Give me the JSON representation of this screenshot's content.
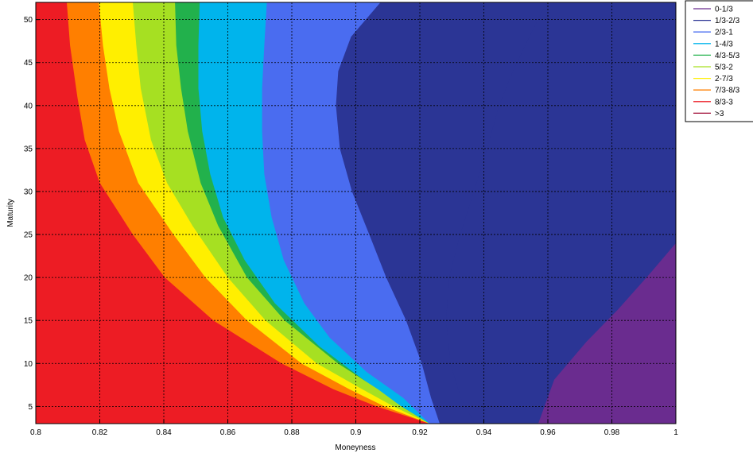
{
  "chart_data": {
    "type": "contour",
    "xlabel": "Moneyness",
    "ylabel": "Maturity",
    "xlim": [
      0.8,
      1.0
    ],
    "ylim": [
      3,
      52
    ],
    "grid": true,
    "legend_position": "outside-top-right",
    "x_ticks": [
      "0.8",
      "0.82",
      "0.84",
      "0.86",
      "0.88",
      "0.9",
      "0.92",
      "0.94",
      "0.96",
      "0.98",
      "1"
    ],
    "y_ticks": [
      "5",
      "10",
      "15",
      "20",
      "25",
      "30",
      "35",
      "40",
      "45",
      "50"
    ],
    "legend": [
      {
        "label": "0-1/3",
        "color": "#6a2c8f"
      },
      {
        "label": "1/3-2/3",
        "color": "#2b3595"
      },
      {
        "label": "2/3-1",
        "color": "#4a6cf0"
      },
      {
        "label": "1-4/3",
        "color": "#00b4ec"
      },
      {
        "label": "4/3-5/3",
        "color": "#22b14c"
      },
      {
        "label": "5/3-2",
        "color": "#a6e022"
      },
      {
        "label": "2-7/3",
        "color": "#ffef00"
      },
      {
        "label": "7/3-8/3",
        "color": "#ff7f00"
      },
      {
        "label": "8/3-3",
        "color": "#ed1c24"
      },
      {
        "label": ">3",
        "color": "#9b002d"
      }
    ],
    "regions": [
      {
        "level": ">3",
        "color": "#9b002d",
        "boundary": [
          [
            0.8,
            52
          ],
          [
            0.8,
            3
          ],
          [
            0.923,
            3
          ]
        ]
      },
      {
        "level": "8/3-3",
        "color": "#ed1c24",
        "boundary": [
          [
            0.8097,
            52
          ],
          [
            0.8107,
            47
          ],
          [
            0.813,
            41
          ],
          [
            0.8153,
            36
          ],
          [
            0.82,
            31
          ],
          [
            0.8303,
            25
          ],
          [
            0.8403,
            20
          ],
          [
            0.8555,
            15
          ],
          [
            0.8768,
            10
          ],
          [
            0.893,
            7
          ],
          [
            0.9065,
            5
          ],
          [
            0.923,
            3
          ]
        ]
      },
      {
        "level": "7/3-8/3",
        "color": "#ff7f00",
        "boundary": [
          [
            0.8197,
            52
          ],
          [
            0.821,
            47
          ],
          [
            0.823,
            42
          ],
          [
            0.826,
            37
          ],
          [
            0.832,
            31
          ],
          [
            0.843,
            25
          ],
          [
            0.853,
            20
          ],
          [
            0.866,
            15
          ],
          [
            0.883,
            10
          ],
          [
            0.898,
            7
          ],
          [
            0.909,
            5
          ],
          [
            0.923,
            3
          ]
        ]
      },
      {
        "level": "2-7/3",
        "color": "#ffef00",
        "boundary": [
          [
            0.8303,
            52
          ],
          [
            0.8314,
            47
          ],
          [
            0.8328,
            42
          ],
          [
            0.836,
            36
          ],
          [
            0.841,
            31
          ],
          [
            0.849,
            26
          ],
          [
            0.86,
            20
          ],
          [
            0.8718,
            15
          ],
          [
            0.8878,
            10
          ],
          [
            0.902,
            7
          ],
          [
            0.9118,
            5
          ],
          [
            0.923,
            3
          ]
        ]
      },
      {
        "level": "5/3-2",
        "color": "#a6e022",
        "boundary": [
          [
            0.8435,
            52
          ],
          [
            0.8439,
            47
          ],
          [
            0.8454,
            42
          ],
          [
            0.8475,
            37
          ],
          [
            0.8515,
            31
          ],
          [
            0.857,
            26
          ],
          [
            0.866,
            20
          ],
          [
            0.8778,
            15
          ],
          [
            0.8944,
            10
          ],
          [
            0.9069,
            7
          ],
          [
            0.9142,
            5
          ],
          [
            0.923,
            3
          ]
        ]
      },
      {
        "level": "4/3-5/3",
        "color": "#22b14c",
        "boundary": [
          [
            0.8512,
            52
          ],
          [
            0.8508,
            47
          ],
          [
            0.8508,
            42
          ],
          [
            0.852,
            37
          ],
          [
            0.8545,
            32
          ],
          [
            0.8585,
            27
          ],
          [
            0.8653,
            22
          ],
          [
            0.8747,
            17
          ],
          [
            0.8886,
            12
          ],
          [
            0.9063,
            7
          ],
          [
            0.9142,
            5
          ],
          [
            0.923,
            3
          ]
        ]
      },
      {
        "level": "1-4/3",
        "color": "#00b4ec",
        "boundary": [
          [
            0.8722,
            52
          ],
          [
            0.8714,
            47
          ],
          [
            0.8707,
            42
          ],
          [
            0.8707,
            37
          ],
          [
            0.8714,
            32
          ],
          [
            0.8737,
            27
          ],
          [
            0.8775,
            22
          ],
          [
            0.8839,
            17
          ],
          [
            0.8918,
            13
          ],
          [
            0.9034,
            9
          ],
          [
            0.9148,
            6
          ],
          [
            0.923,
            3
          ]
        ]
      },
      {
        "level": "2/3-1",
        "color": "#4a6cf0",
        "boundary": [
          [
            0.9077,
            52
          ],
          [
            0.8985,
            48
          ],
          [
            0.8945,
            44
          ],
          [
            0.8938,
            40
          ],
          [
            0.895,
            35
          ],
          [
            0.8988,
            30
          ],
          [
            0.9042,
            25
          ],
          [
            0.9095,
            20
          ],
          [
            0.9157,
            15
          ],
          [
            0.9206,
            10
          ],
          [
            0.9235,
            6
          ],
          [
            0.9262,
            3
          ]
        ]
      },
      {
        "level": "1/3-2/3",
        "color": "#2b3595",
        "boundary": [
          [
            0.9597,
            52
          ],
          [
            0.9542,
            48
          ],
          [
            0.9491,
            44
          ],
          [
            0.9448,
            40
          ],
          [
            0.941,
            35
          ],
          [
            0.9369,
            30
          ],
          [
            0.9326,
            25
          ],
          [
            0.9292,
            20
          ],
          [
            0.9282,
            15
          ],
          [
            0.9296,
            10
          ],
          [
            0.9328,
            6
          ],
          [
            0.9371,
            3
          ]
        ]
      },
      {
        "level": "0-1/3",
        "color": "#6a2c8f",
        "boundary": [
          [
            1.0,
            24
          ],
          [
            0.992,
            20.5
          ],
          [
            0.982,
            16.3
          ],
          [
            0.972,
            12.5
          ],
          [
            0.962,
            8.1
          ],
          [
            0.957,
            3
          ]
        ]
      }
    ]
  }
}
